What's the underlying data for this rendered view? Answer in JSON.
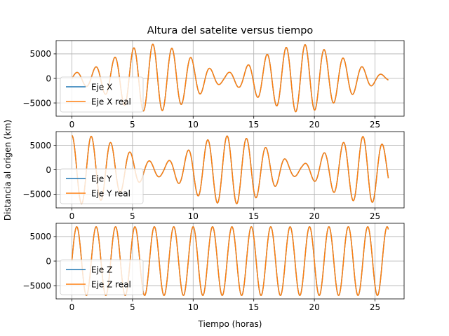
{
  "figure": {
    "title": "Altura del satelite versus tiempo",
    "xlabel": "Tiempo (horas)",
    "ylabel": "Distancia al origen (km)"
  },
  "colors": {
    "measured": "#1f77b4",
    "real": "#ff7f0e",
    "grid": "#b0b0b0"
  },
  "chart_data": [
    {
      "type": "line",
      "x_range": [
        0,
        26.1
      ],
      "xlim": [
        -1.3,
        27.4
      ],
      "ylim": [
        -7700,
        7700
      ],
      "x_ticks": [
        0,
        5,
        10,
        15,
        20,
        25
      ],
      "y_ticks": [
        -5000,
        0,
        5000
      ],
      "grid": true,
      "legend": "lower-left",
      "series": [
        {
          "name": "Eje X",
          "amplitude_envelope_km": [
            [
              0,
              1000
            ],
            [
              1.5,
              1800
            ],
            [
              3,
              3500
            ],
            [
              4.7,
              6000
            ],
            [
              6.6,
              7000
            ],
            [
              8.5,
              6000
            ],
            [
              10,
              4000
            ],
            [
              11.4,
              2000
            ],
            [
              12.5,
              900
            ],
            [
              14,
              2000
            ],
            [
              16,
              4800
            ],
            [
              18,
              6600
            ],
            [
              19,
              7000
            ],
            [
              20.5,
              6200
            ],
            [
              22.5,
              4000
            ],
            [
              24,
              2300
            ],
            [
              25,
              1200
            ],
            [
              26,
              500
            ]
          ],
          "period_hours": 1.57,
          "phase_hours": 0.4
        },
        {
          "name": "Eje X real",
          "same_as": "Eje X"
        }
      ]
    },
    {
      "type": "line",
      "x_range": [
        0,
        26.1
      ],
      "xlim": [
        -1.3,
        27.4
      ],
      "ylim": [
        -7800,
        7800
      ],
      "x_ticks": [
        0,
        5,
        10,
        15,
        20,
        25
      ],
      "y_ticks": [
        -5000,
        0,
        5000
      ],
      "grid": true,
      "legend": "lower-left",
      "series": [
        {
          "name": "Eje Y",
          "amplitude_envelope_km": [
            [
              0,
              7000
            ],
            [
              1.5,
              6900
            ],
            [
              3,
              5800
            ],
            [
              4.5,
              4000
            ],
            [
              6,
              2000
            ],
            [
              7.5,
              1300
            ],
            [
              9,
              3000
            ],
            [
              10.5,
              5500
            ],
            [
              12,
              6800
            ],
            [
              13.5,
              7000
            ],
            [
              15,
              6000
            ],
            [
              16.5,
              3800
            ],
            [
              18,
              1600
            ],
            [
              19,
              1000
            ],
            [
              20.5,
              3000
            ],
            [
              22,
              5200
            ],
            [
              23.5,
              6600
            ],
            [
              24.6,
              7000
            ],
            [
              26,
              4500
            ]
          ],
          "period_hours": 1.6,
          "phase_hours": 0
        },
        {
          "name": "Eje Y real",
          "same_as": "Eje Y"
        }
      ]
    },
    {
      "type": "line",
      "x_range": [
        0,
        26.1
      ],
      "xlim": [
        -1.3,
        27.4
      ],
      "ylim": [
        -7700,
        7700
      ],
      "x_ticks": [
        0,
        5,
        10,
        15,
        20,
        25
      ],
      "y_ticks": [
        -5000,
        0,
        5000
      ],
      "grid": true,
      "legend": "lower-left",
      "series": [
        {
          "name": "Eje Z",
          "amplitude_km": 7000,
          "period_hours": 1.6,
          "phase_hours": 0.4
        },
        {
          "name": "Eje Z real",
          "same_as": "Eje Z"
        }
      ]
    }
  ]
}
